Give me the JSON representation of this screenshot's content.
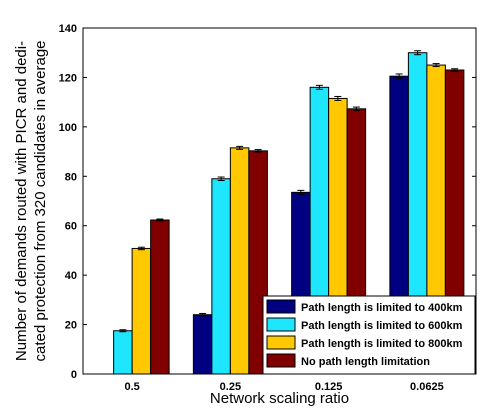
{
  "chart_data": {
    "type": "bar",
    "title": "",
    "xlabel": "Network scaling ratio",
    "ylabel": "Number of demands routed with PICR and dedicated protection from 320 candidates in average",
    "ylabel_lines": [
      "Number of demands routed with PICR and dedi-",
      "cated protection from 320 candidates in average"
    ],
    "categories": [
      "0.5",
      "0.25",
      "0.125",
      "0.0625"
    ],
    "ylim": [
      0,
      140
    ],
    "yticks": [
      0,
      20,
      40,
      60,
      80,
      100,
      120,
      140
    ],
    "grid": false,
    "legend_position": "bottom-right",
    "series": [
      {
        "name": "Path length is limited to 400km",
        "color": "#000080",
        "values": [
          0,
          24,
          73.5,
          120.5
        ],
        "errors": [
          0,
          0.5,
          0.8,
          0.9
        ]
      },
      {
        "name": "Path length is limited to 600km",
        "color": "#1ee6ff",
        "values": [
          17.5,
          79,
          116,
          130
        ],
        "errors": [
          0.4,
          0.7,
          0.8,
          0.8
        ]
      },
      {
        "name": "Path length is limited to 800km",
        "color": "#ffc800",
        "values": [
          50.8,
          91.5,
          111.5,
          125
        ],
        "errors": [
          0.5,
          0.6,
          0.8,
          0.6
        ]
      },
      {
        "name": "No path length limitation",
        "color": "#800000",
        "values": [
          62.3,
          90.3,
          107.3,
          123
        ],
        "errors": [
          0.4,
          0.5,
          0.7,
          0.5
        ]
      }
    ]
  }
}
